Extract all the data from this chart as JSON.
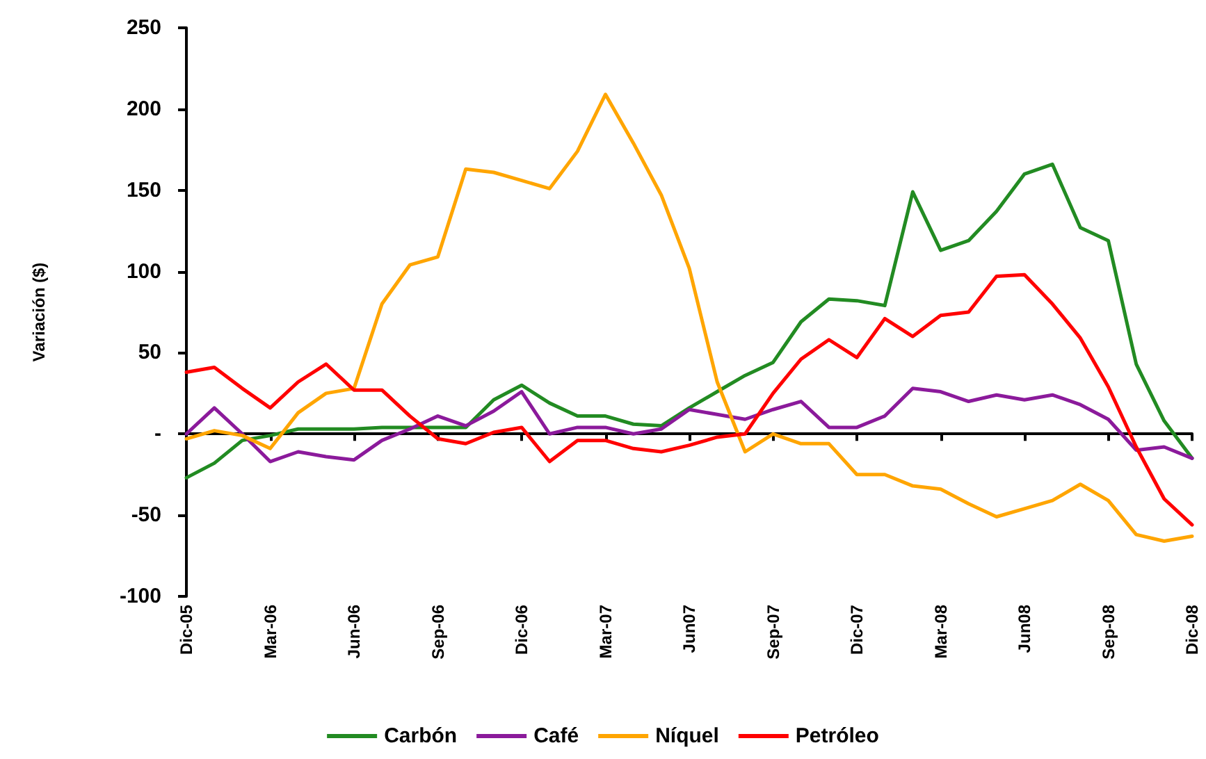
{
  "chart_data": {
    "type": "line",
    "ylabel": "Variación ($)",
    "categories": [
      "Dic-05",
      null,
      null,
      "Mar-06",
      null,
      null,
      "Jun-06",
      null,
      null,
      "Sep-06",
      null,
      null,
      "Dic-06",
      null,
      null,
      "Mar-07",
      null,
      null,
      "Jun07",
      null,
      null,
      "Sep-07",
      null,
      null,
      "Dic-07",
      null,
      null,
      "Mar-08",
      null,
      null,
      "Jun08",
      null,
      null,
      "Sep-08",
      null,
      null,
      "Dic-08"
    ],
    "series": [
      {
        "name": "Carbón",
        "color": "#228b22",
        "values": [
          -27,
          -18,
          -4,
          -1,
          3,
          3,
          3,
          4,
          4,
          4,
          4,
          21,
          30,
          19,
          11,
          11,
          6,
          5,
          16,
          26,
          36,
          44,
          69,
          83,
          82,
          79,
          149,
          113,
          119,
          137,
          160,
          166,
          127,
          119,
          43,
          8,
          -15
        ]
      },
      {
        "name": "Café",
        "color": "#8b1a9b",
        "values": [
          0,
          16,
          0,
          -17,
          -11,
          -14,
          -16,
          -4,
          3,
          11,
          5,
          14,
          26,
          0,
          4,
          4,
          0,
          3,
          15,
          12,
          9,
          15,
          20,
          4,
          4,
          11,
          28,
          26,
          20,
          24,
          21,
          24,
          18,
          9,
          -10,
          -8,
          -15
        ]
      },
      {
        "name": "Níquel",
        "color": "#ffa500",
        "values": [
          -3,
          2,
          -1,
          -9,
          13,
          25,
          28,
          80,
          104,
          109,
          163,
          161,
          156,
          151,
          174,
          209,
          179,
          147,
          102,
          32,
          -11,
          0,
          -6,
          -6,
          -25,
          -25,
          -32,
          -34,
          -43,
          -51,
          -46,
          -41,
          -31,
          -41,
          -62,
          -66,
          -63
        ]
      },
      {
        "name": "Petróleo",
        "color": "#ff0000",
        "values": [
          38,
          41,
          28,
          16,
          32,
          43,
          27,
          27,
          11,
          -3,
          -6,
          1,
          4,
          -17,
          -4,
          -4,
          -9,
          -11,
          -7,
          -2,
          0,
          25,
          46,
          58,
          47,
          71,
          60,
          73,
          75,
          97,
          98,
          80,
          59,
          29,
          -8,
          -40,
          -56
        ]
      }
    ],
    "ylim": [
      -100,
      250
    ],
    "yticks": [
      -100,
      -50,
      {
        "value": 0,
        "label": "-"
      },
      50,
      100,
      150,
      200,
      250
    ],
    "legend": "bottom",
    "marker": "none",
    "line_style": "solid"
  }
}
